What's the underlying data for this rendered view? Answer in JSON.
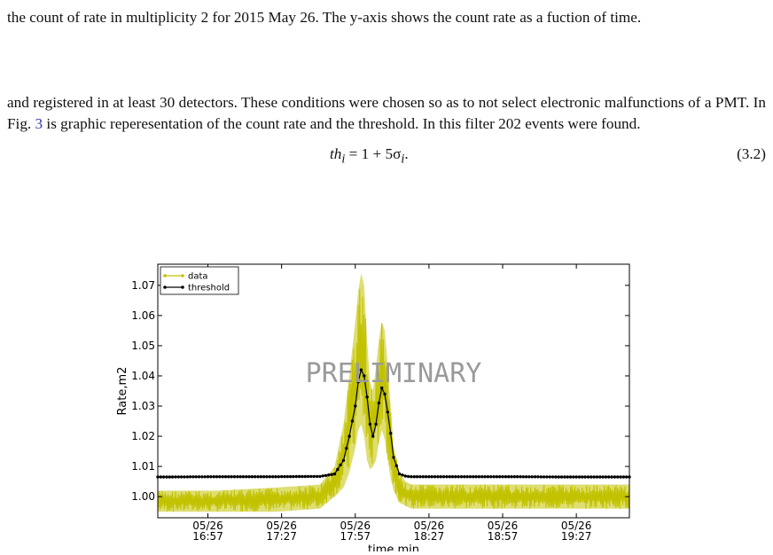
{
  "text": {
    "para1": "the count of rate in multiplicity 2 for 2015 May 26. The y-axis shows the count rate as a fuction of time.",
    "para2_a": "and registered in at least 30 detectors. These conditions were chosen so as to not select electronic malfunctions of a PMT. In Fig. ",
    "para2_ref": "3",
    "para2_b": " is graphic reperesentation of the count rate and the threshold. In this filter 202 events were found.",
    "eq_lhs": "th",
    "eq_sub": "i",
    "eq_mid": " = 1 + 5σ",
    "eq_sub2": "i",
    "eq_end": ".",
    "eq_number": "(3.2)"
  },
  "chart_data": {
    "type": "line",
    "ylabel": "Rate,m2",
    "xlabel": "time,min",
    "watermark": "PRELIMINARY",
    "ylim": [
      0.993,
      1.077
    ],
    "xlim_minutes": [
      0,
      160
    ],
    "yticks": [
      "1.00",
      "1.01",
      "1.02",
      "1.03",
      "1.04",
      "1.05",
      "1.06",
      "1.07"
    ],
    "ytick_values": [
      1.0,
      1.01,
      1.02,
      1.03,
      1.04,
      1.05,
      1.06,
      1.07
    ],
    "xticks": [
      {
        "date": "05/26",
        "time": "16:57",
        "minute": 17
      },
      {
        "date": "05/26",
        "time": "17:27",
        "minute": 42
      },
      {
        "date": "05/26",
        "time": "17:57",
        "minute": 67
      },
      {
        "date": "05/26",
        "time": "18:27",
        "minute": 92
      },
      {
        "date": "05/26",
        "time": "18:57",
        "minute": 117
      },
      {
        "date": "05/26",
        "time": "19:27",
        "minute": 142
      }
    ],
    "legend": {
      "position": "top-left",
      "entries": [
        "data",
        "threshold"
      ]
    },
    "colors": {
      "data": "#c2c200",
      "threshold": "#000000"
    },
    "series": [
      {
        "name": "threshold",
        "x": [
          0,
          20,
          40,
          55,
          60,
          63,
          65,
          67,
          68,
          69,
          70,
          71,
          72,
          73,
          74,
          75,
          76,
          77,
          78,
          79,
          80,
          82,
          84,
          86,
          90,
          100,
          120,
          140,
          160
        ],
        "y": [
          1.0065,
          1.0066,
          1.0066,
          1.0067,
          1.0075,
          1.012,
          1.02,
          1.03,
          1.038,
          1.042,
          1.04,
          1.033,
          1.024,
          1.02,
          1.024,
          1.031,
          1.036,
          1.034,
          1.028,
          1.021,
          1.013,
          1.0075,
          1.0068,
          1.0066,
          1.0066,
          1.0066,
          1.0066,
          1.0065,
          1.0065
        ]
      },
      {
        "name": "data",
        "x": [
          0,
          20,
          40,
          55,
          60,
          63,
          65,
          67,
          68,
          69,
          70,
          71,
          72,
          73,
          74,
          75,
          76,
          77,
          78,
          79,
          80,
          82,
          84,
          86,
          90,
          100,
          120,
          140,
          160
        ],
        "y_low": [
          0.995,
          0.995,
          0.995,
          0.996,
          1.0,
          1.003,
          1.008,
          1.016,
          1.022,
          1.024,
          1.02,
          1.012,
          1.009,
          1.01,
          1.012,
          1.018,
          1.022,
          1.019,
          1.012,
          1.006,
          1.002,
          0.998,
          0.997,
          0.996,
          0.996,
          0.996,
          0.996,
          0.996,
          0.996
        ],
        "y_high": [
          1.002,
          1.002,
          1.003,
          1.004,
          1.01,
          1.024,
          1.04,
          1.058,
          1.068,
          1.074,
          1.07,
          1.052,
          1.038,
          1.035,
          1.043,
          1.052,
          1.058,
          1.055,
          1.044,
          1.03,
          1.017,
          1.008,
          1.005,
          1.004,
          1.004,
          1.004,
          1.004,
          1.004,
          1.004
        ]
      }
    ]
  }
}
